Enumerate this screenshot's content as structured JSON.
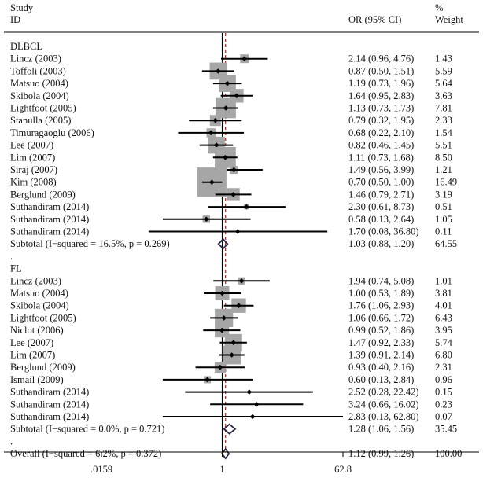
{
  "chart_data": {
    "type": "forest",
    "x_scale": "log",
    "xlim": [
      0.0159,
      62.8
    ],
    "xticks": [
      {
        "value": 0.0159,
        "label": ".0159"
      },
      {
        "value": 1,
        "label": "1"
      },
      {
        "value": 62.8,
        "label": "62.8"
      }
    ],
    "reference_line": 1,
    "overall_estimate_line": 1.12,
    "colors": {
      "weight_box": "#a6a6a6",
      "ci_line": "#000000",
      "point": "#000000",
      "diamond": "#2d2744",
      "overall_line": "#8b1a1a"
    },
    "headers": {
      "study": "Study",
      "id": "ID",
      "or": "OR (95% CI)",
      "pct": "%",
      "weight": "Weight"
    },
    "groups": [
      {
        "name": "DLBCL",
        "studies": [
          {
            "label": "Lincz (2003)",
            "or": 2.14,
            "lo": 0.96,
            "hi": 4.76,
            "ci_text": "2.14 (0.96, 4.76)",
            "weight": 1.43,
            "weight_text": "1.43"
          },
          {
            "label": "Toffoli (2003)",
            "or": 0.87,
            "lo": 0.5,
            "hi": 1.51,
            "ci_text": "0.87 (0.50, 1.51)",
            "weight": 5.59,
            "weight_text": "5.59"
          },
          {
            "label": "Matsuo (2004)",
            "or": 1.19,
            "lo": 0.73,
            "hi": 1.96,
            "ci_text": "1.19 (0.73, 1.96)",
            "weight": 5.64,
            "weight_text": "5.64"
          },
          {
            "label": "Skibola (2004)",
            "or": 1.64,
            "lo": 0.95,
            "hi": 2.83,
            "ci_text": "1.64 (0.95, 2.83)",
            "weight": 3.63,
            "weight_text": "3.63"
          },
          {
            "label": "Lightfoot (2005)",
            "or": 1.13,
            "lo": 0.73,
            "hi": 1.73,
            "ci_text": "1.13 (0.73, 1.73)",
            "weight": 7.81,
            "weight_text": "7.81"
          },
          {
            "label": "Stanulla (2005)",
            "or": 0.79,
            "lo": 0.32,
            "hi": 1.95,
            "ci_text": "0.79 (0.32, 1.95)",
            "weight": 2.33,
            "weight_text": "2.33"
          },
          {
            "label": "Timuragaoglu (2006)",
            "or": 0.68,
            "lo": 0.22,
            "hi": 2.1,
            "ci_text": "0.68 (0.22, 2.10)",
            "weight": 1.54,
            "weight_text": "1.54"
          },
          {
            "label": "Lee (2007)",
            "or": 0.82,
            "lo": 0.46,
            "hi": 1.45,
            "ci_text": "0.82 (0.46, 1.45)",
            "weight": 5.51,
            "weight_text": "5.51"
          },
          {
            "label": "Lim (2007)",
            "or": 1.11,
            "lo": 0.73,
            "hi": 1.68,
            "ci_text": "1.11 (0.73, 1.68)",
            "weight": 8.5,
            "weight_text": "8.50"
          },
          {
            "label": "Siraj  (2007)",
            "or": 1.49,
            "lo": 0.56,
            "hi": 3.99,
            "ci_text": "1.49 (0.56, 3.99)",
            "weight": 1.21,
            "weight_text": "1.21"
          },
          {
            "label": "Kim (2008)",
            "or": 0.7,
            "lo": 0.5,
            "hi": 1.0,
            "ci_text": "0.70 (0.50, 1.00)",
            "weight": 16.49,
            "weight_text": "16.49"
          },
          {
            "label": "Berglund (2009)",
            "or": 1.46,
            "lo": 0.79,
            "hi": 2.71,
            "ci_text": "1.46 (0.79, 2.71)",
            "weight": 3.19,
            "weight_text": "3.19"
          },
          {
            "label": "Suthandiram (2014)",
            "or": 2.3,
            "lo": 0.61,
            "hi": 8.73,
            "ci_text": "2.30 (0.61, 8.73)",
            "weight": 0.51,
            "weight_text": "0.51"
          },
          {
            "label": "Suthandiram (2014)",
            "or": 0.58,
            "lo": 0.13,
            "hi": 2.64,
            "ci_text": "0.58 (0.13, 2.64)",
            "weight": 1.05,
            "weight_text": "1.05"
          },
          {
            "label": "Suthandiram (2014)",
            "or": 1.7,
            "lo": 0.08,
            "hi": 36.8,
            "ci_text": "1.70 (0.08, 36.80)",
            "weight": 0.11,
            "weight_text": "0.11"
          }
        ],
        "subtotal": {
          "label": "Subtotal  (I−squared = 16.5%, p = 0.269)",
          "or": 1.03,
          "lo": 0.88,
          "hi": 1.2,
          "ci_text": "1.03 (0.88, 1.20)",
          "weight_text": "64.55"
        }
      },
      {
        "name": "FL",
        "studies": [
          {
            "label": "Lincz (2003)",
            "or": 1.94,
            "lo": 0.74,
            "hi": 5.08,
            "ci_text": "1.94 (0.74, 5.08)",
            "weight": 1.01,
            "weight_text": "1.01"
          },
          {
            "label": "Matsuo (2004)",
            "or": 1.0,
            "lo": 0.53,
            "hi": 1.89,
            "ci_text": "1.00 (0.53, 1.89)",
            "weight": 3.81,
            "weight_text": "3.81"
          },
          {
            "label": "Skibola (2004)",
            "or": 1.76,
            "lo": 1.06,
            "hi": 2.93,
            "ci_text": "1.76 (1.06, 2.93)",
            "weight": 4.01,
            "weight_text": "4.01"
          },
          {
            "label": "Lightfoot (2005)",
            "or": 1.06,
            "lo": 0.66,
            "hi": 1.72,
            "ci_text": "1.06 (0.66, 1.72)",
            "weight": 6.43,
            "weight_text": "6.43"
          },
          {
            "label": "Niclot (2006)",
            "or": 0.99,
            "lo": 0.52,
            "hi": 1.86,
            "ci_text": "0.99 (0.52, 1.86)",
            "weight": 3.95,
            "weight_text": "3.95"
          },
          {
            "label": "Lee (2007)",
            "or": 1.47,
            "lo": 0.92,
            "hi": 2.33,
            "ci_text": "1.47 (0.92, 2.33)",
            "weight": 5.74,
            "weight_text": "5.74"
          },
          {
            "label": "Lim (2007)",
            "or": 1.39,
            "lo": 0.91,
            "hi": 2.14,
            "ci_text": "1.39 (0.91, 2.14)",
            "weight": 6.8,
            "weight_text": "6.80"
          },
          {
            "label": "Berglund (2009)",
            "or": 0.93,
            "lo": 0.4,
            "hi": 2.16,
            "ci_text": "0.93 (0.40, 2.16)",
            "weight": 2.31,
            "weight_text": "2.31"
          },
          {
            "label": "Ismail (2009)",
            "or": 0.6,
            "lo": 0.13,
            "hi": 2.84,
            "ci_text": "0.60 (0.13, 2.84)",
            "weight": 0.96,
            "weight_text": "0.96"
          },
          {
            "label": "Suthandiram (2014)",
            "or": 2.52,
            "lo": 0.28,
            "hi": 22.42,
            "ci_text": "2.52 (0.28, 22.42)",
            "weight": 0.15,
            "weight_text": "0.15"
          },
          {
            "label": "Suthandiram (2014)",
            "or": 3.24,
            "lo": 0.66,
            "hi": 16.02,
            "ci_text": "3.24 (0.66, 16.02)",
            "weight": 0.23,
            "weight_text": "0.23"
          },
          {
            "label": "Suthandiram (2014)",
            "or": 2.83,
            "lo": 0.13,
            "hi": 62.8,
            "ci_text": "2.83 (0.13, 62.80)",
            "weight": 0.07,
            "weight_text": "0.07"
          }
        ],
        "subtotal": {
          "label": "Subtotal  (I−squared = 0.0%, p = 0.721)",
          "or": 1.28,
          "lo": 1.06,
          "hi": 1.56,
          "ci_text": "1.28 (1.06, 1.56)",
          "weight_text": "35.45"
        }
      }
    ],
    "group_separator": ".",
    "overall_separator": ".",
    "overall": {
      "label": "Overall  (I−squared = 6.2%, p = 0.372)",
      "or": 1.12,
      "lo": 0.99,
      "hi": 1.26,
      "ci_text": "1.12 (0.99, 1.26)",
      "weight_text": "100.00"
    }
  }
}
